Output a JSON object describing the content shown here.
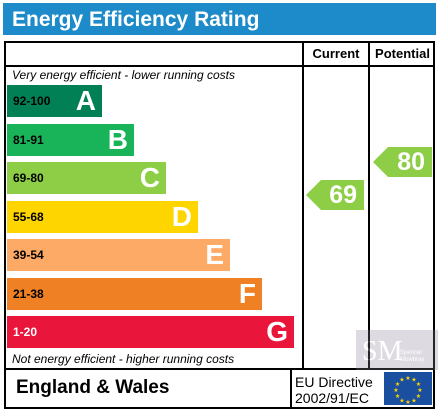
{
  "header": {
    "title": "Energy Efficiency Rating"
  },
  "columns": {
    "current": "Current",
    "potential": "Potential"
  },
  "notes": {
    "top": "Very energy efficient - lower running costs",
    "bottom": "Not energy efficient - higher running costs"
  },
  "bands": [
    {
      "range": "92-100",
      "letter": "A",
      "color": "#008054"
    },
    {
      "range": "81-91",
      "letter": "B",
      "color": "#19b459"
    },
    {
      "range": "69-80",
      "letter": "C",
      "color": "#8dce46"
    },
    {
      "range": "55-68",
      "letter": "D",
      "color": "#ffd500"
    },
    {
      "range": "39-54",
      "letter": "E",
      "color": "#fcaa65"
    },
    {
      "range": "21-38",
      "letter": "F",
      "color": "#ef8023"
    },
    {
      "range": "1-20",
      "letter": "G",
      "color": "#e9153b"
    }
  ],
  "ratings": {
    "current": {
      "value": "69",
      "band": "C",
      "color": "#8dce46"
    },
    "potential": {
      "value": "80",
      "band": "C",
      "color": "#8dce46"
    }
  },
  "footer": {
    "country": "England & Wales",
    "directive_line1": "EU Directive",
    "directive_line2": "2002/91/EC"
  },
  "watermark": {
    "text": "Spencer Mowbray"
  }
}
